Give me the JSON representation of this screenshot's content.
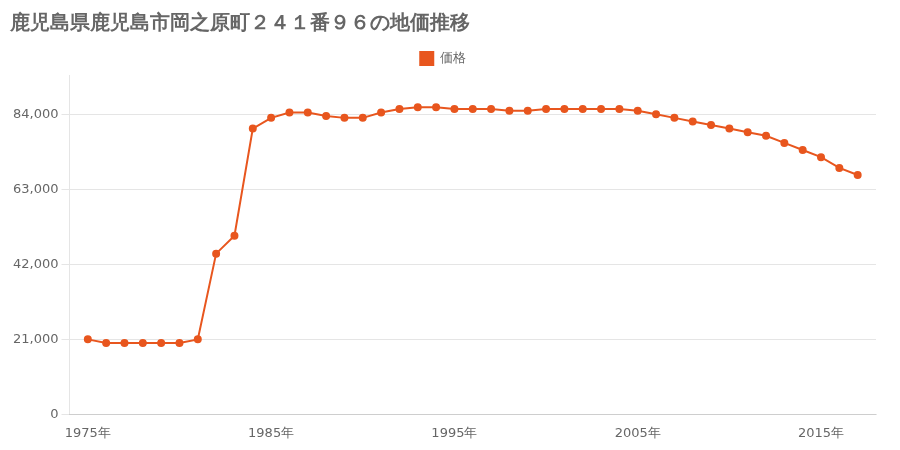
{
  "chart_data": {
    "type": "line",
    "title": "鹿児島県鹿児島市岡之原町２４１番９６の地価推移",
    "x": [
      1975,
      1976,
      1977,
      1978,
      1979,
      1980,
      1981,
      1982,
      1983,
      1984,
      1985,
      1986,
      1987,
      1988,
      1989,
      1990,
      1991,
      1992,
      1993,
      1994,
      1995,
      1996,
      1997,
      1998,
      1999,
      2000,
      2001,
      2002,
      2003,
      2004,
      2005,
      2006,
      2007,
      2008,
      2009,
      2010,
      2011,
      2012,
      2013,
      2014,
      2015,
      2016,
      2017
    ],
    "series": [
      {
        "name": "価格",
        "color": "#E8561E",
        "marker": "circle",
        "line_style": "solid",
        "values": [
          21000,
          20000,
          20000,
          20000,
          20000,
          20000,
          21000,
          45000,
          50000,
          80000,
          83000,
          84500,
          84500,
          83500,
          83000,
          83000,
          84500,
          85500,
          86000,
          86000,
          85500,
          85500,
          85500,
          85000,
          85000,
          85500,
          85500,
          85500,
          85500,
          85500,
          85000,
          84000,
          83000,
          82000,
          81000,
          80000,
          79000,
          78000,
          76000,
          74000,
          72000,
          69000,
          67000
        ]
      }
    ],
    "xlim": [
      1974,
      2018
    ],
    "xticks": [
      {
        "value": 1975,
        "label": "1975年"
      },
      {
        "value": 1985,
        "label": "1985年"
      },
      {
        "value": 1995,
        "label": "1995年"
      },
      {
        "value": 2005,
        "label": "2005年"
      },
      {
        "value": 2015,
        "label": "2015年"
      }
    ],
    "ylim": [
      0,
      95000
    ],
    "yticks": [
      0,
      {
        "value": 21000,
        "label": "21,000"
      },
      {
        "value": 42000,
        "label": "42,000"
      },
      {
        "value": 63000,
        "label": "63,000"
      },
      {
        "value": 84000,
        "label": "84,000"
      }
    ],
    "grid": "y",
    "legend": "top"
  }
}
